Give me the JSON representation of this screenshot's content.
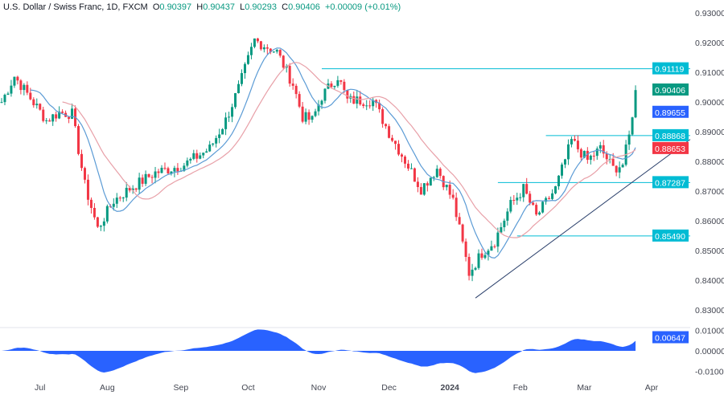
{
  "header": {
    "symbol": "U.S. Dollar / Swiss Franc, 1D, FXCM",
    "o_label": "O",
    "o": "0.90397",
    "h_label": "H",
    "h": "0.90437",
    "l_label": "L",
    "l": "0.90293",
    "c_label": "C",
    "c": "0.90406",
    "change": "+0.00009 (+0.01%)"
  },
  "chart_data": {
    "type": "candlestick",
    "title": "U.S. Dollar / Swiss Franc, 1D, FXCM",
    "price_ticks": [
      "0.93000",
      "0.92000",
      "0.91000",
      "0.90000",
      "0.89000",
      "0.88000",
      "0.87000",
      "0.86000",
      "0.85000",
      "0.84000",
      "0.83000"
    ],
    "price_tick_values": [
      0.93,
      0.92,
      0.91,
      0.9,
      0.89,
      0.88,
      0.87,
      0.86,
      0.85,
      0.84,
      0.83
    ],
    "ylim": [
      0.83,
      0.93
    ],
    "x_ticks": [
      "Jul",
      "Aug",
      "Sep",
      "Oct",
      "Nov",
      "Dec",
      "2024",
      "Feb",
      "Mar",
      "Apr"
    ],
    "x_tick_days": [
      12,
      33,
      56,
      77,
      99,
      121,
      140,
      162,
      182,
      203
    ],
    "close_path_days": [
      0,
      4,
      14,
      18,
      22,
      26,
      30,
      35,
      40,
      48,
      57,
      65,
      70,
      74,
      79,
      86,
      91,
      94,
      97,
      100,
      105,
      108,
      116,
      121,
      126,
      131,
      136,
      141,
      146,
      150,
      154,
      159,
      163,
      167,
      173,
      178,
      183,
      187,
      191,
      194,
      196,
      198
    ],
    "close_path": [
      0.9,
      0.9087,
      0.8938,
      0.8965,
      0.896,
      0.872,
      0.8573,
      0.8668,
      0.8708,
      0.8762,
      0.8789,
      0.8843,
      0.8938,
      0.9046,
      0.9208,
      0.9168,
      0.906,
      0.895,
      0.8938,
      0.9019,
      0.9087,
      0.9005,
      0.9005,
      0.8897,
      0.8803,
      0.8708,
      0.8776,
      0.8668,
      0.8424,
      0.8492,
      0.8532,
      0.8654,
      0.8708,
      0.8614,
      0.8708,
      0.887,
      0.8803,
      0.8843,
      0.8776,
      0.879,
      0.8884,
      0.904
    ],
    "moving_averages": [
      {
        "name": "MA fast",
        "period": 10,
        "color": "#5b9bd5",
        "value": "0.89655"
      },
      {
        "name": "MA slow",
        "period": 20,
        "color": "#e8a0a8",
        "value": "0.88653"
      }
    ],
    "levels": [
      {
        "value": "0.91119",
        "from_day": 100
      },
      {
        "value": "0.88868",
        "from_day": 170
      },
      {
        "value": "0.87287",
        "from_day": 155
      },
      {
        "value": "0.85490",
        "from_day": 161
      }
    ],
    "trendline": {
      "from": [
        148,
        0.834
      ],
      "to": [
        226,
        0.8961
      ]
    },
    "last_price": "0.90406",
    "oscillator": {
      "ticks": [
        "0.01000",
        "0.00000",
        "-0.01000"
      ],
      "tick_values": [
        0.01,
        0,
        -0.01
      ],
      "last": "0.00647"
    },
    "colors": {
      "up": "#089981",
      "down": "#f23645",
      "level": "#00bcd4",
      "trend": "#2a3f6b",
      "osc": "#2962ff"
    }
  }
}
